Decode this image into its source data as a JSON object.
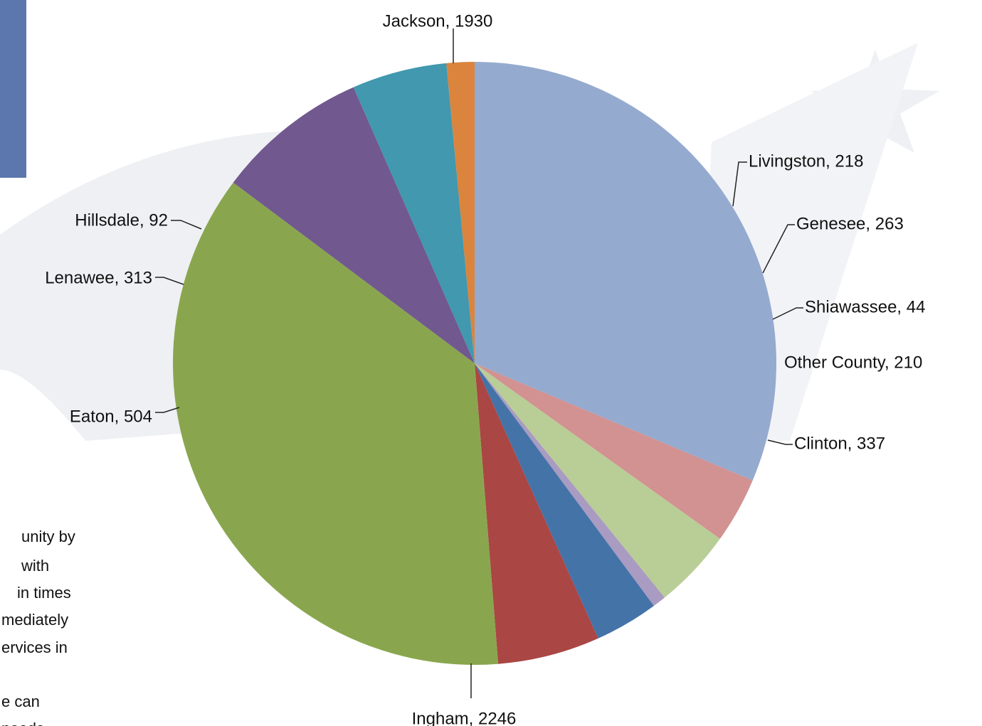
{
  "colors": {
    "side_panel": "#5b77ad",
    "watermark": "#eef0f3"
  },
  "side_text": {
    "lines": [
      "unity by",
      " with",
      " in times",
      "mediately",
      "ervices in",
      "",
      "e can",
      "needs"
    ]
  },
  "chart_data": {
    "type": "pie",
    "title": "",
    "start_angle_deg": -90,
    "slices": [
      {
        "label": "Jackson",
        "value": 1930,
        "display": "Jackson, 1930",
        "color": "#95aacf",
        "label_side": "top"
      },
      {
        "label": "Livingston",
        "value": 218,
        "display": "Livingston, 218",
        "color": "#d19291",
        "label_side": "right"
      },
      {
        "label": "Genesee",
        "value": 263,
        "display": "Genesee, 263",
        "color": "#b9cd96",
        "label_side": "right"
      },
      {
        "label": "Shiawassee",
        "value": 44,
        "display": "Shiawassee, 44",
        "color": "#a99bc2",
        "label_side": "right"
      },
      {
        "label": "Other County",
        "value": 210,
        "display": "Other County, 210",
        "color": "#4473a8",
        "label_side": "right"
      },
      {
        "label": "Clinton",
        "value": 337,
        "display": "Clinton, 337",
        "color": "#aa4644",
        "label_side": "right"
      },
      {
        "label": "Ingham",
        "value": 2246,
        "display": "Ingham, 2246",
        "color": "#89a64e",
        "label_side": "bottom"
      },
      {
        "label": "Eaton",
        "value": 504,
        "display": "Eaton, 504",
        "color": "#71588f",
        "label_side": "left"
      },
      {
        "label": "Lenawee",
        "value": 313,
        "display": "Lenawee, 313",
        "color": "#4198af",
        "label_side": "left"
      },
      {
        "label": "Hillsdale",
        "value": 92,
        "display": "Hillsdale, 92",
        "color": "#db843d",
        "label_side": "left"
      }
    ]
  }
}
